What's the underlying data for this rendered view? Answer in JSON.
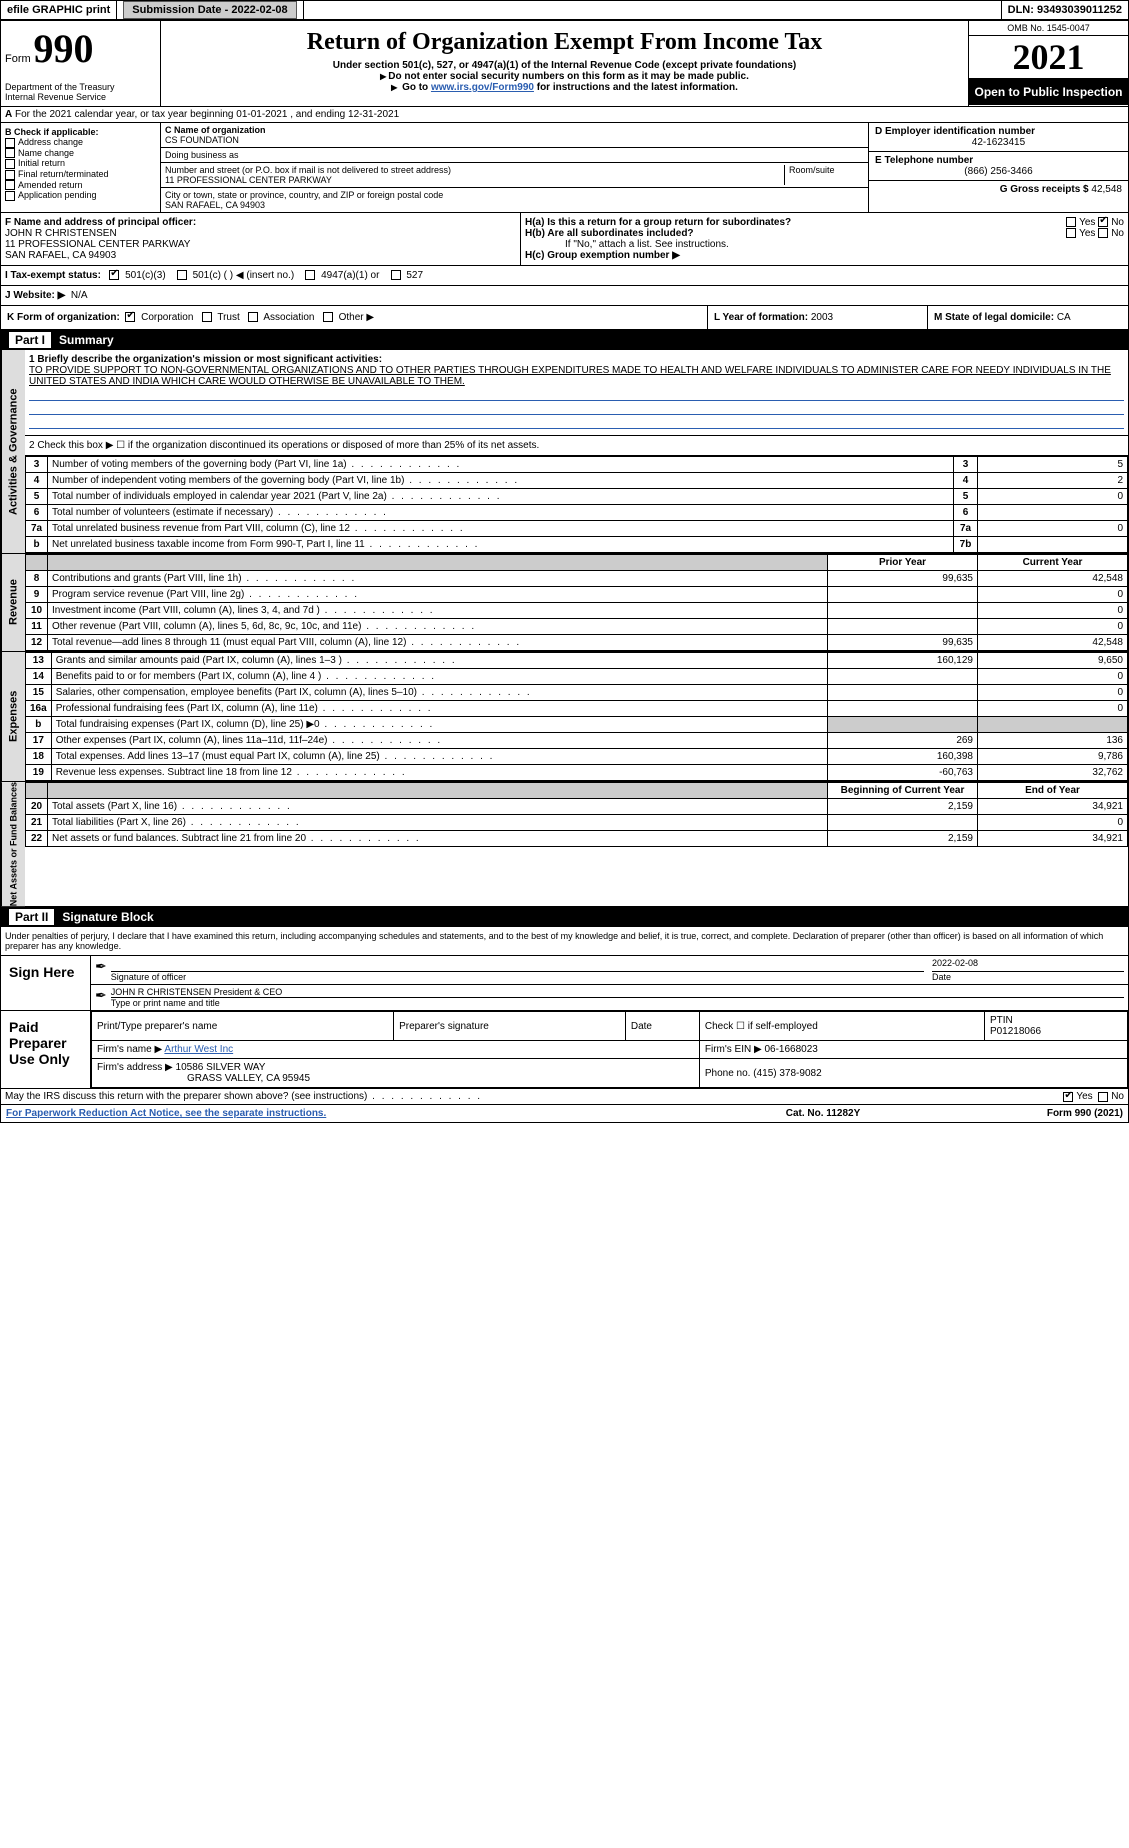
{
  "topbar": {
    "efile": "efile GRAPHIC print",
    "submission_label": "Submission Date - ",
    "submission_date": "2022-02-08",
    "dln_label": "DLN: ",
    "dln": "93493039011252"
  },
  "header": {
    "form_word": "Form",
    "form_num": "990",
    "title": "Return of Organization Exempt From Income Tax",
    "subtitle": "Under section 501(c), 527, or 4947(a)(1) of the Internal Revenue Code (except private foundations)",
    "note1": "Do not enter social security numbers on this form as it may be made public.",
    "note2_pre": "Go to ",
    "note2_link": "www.irs.gov/Form990",
    "note2_post": " for instructions and the latest information.",
    "dept": "Department of the Treasury\nInternal Revenue Service",
    "omb": "OMB No. 1545-0047",
    "year": "2021",
    "open": "Open to Public Inspection"
  },
  "lineA": "For the 2021 calendar year, or tax year beginning 01-01-2021    , and ending 12-31-2021",
  "secB": {
    "hdr": "B Check if applicable:",
    "items": [
      "Address change",
      "Name change",
      "Initial return",
      "Final return/terminated",
      "Amended return",
      "Application pending"
    ]
  },
  "secC": {
    "label": "C Name of organization",
    "name": "CS FOUNDATION",
    "dba_label": "Doing business as",
    "addr_label": "Number and street (or P.O. box if mail is not delivered to street address)",
    "room_label": "Room/suite",
    "addr": "11 PROFESSIONAL CENTER PARKWAY",
    "city_label": "City or town, state or province, country, and ZIP or foreign postal code",
    "city": "SAN RAFAEL, CA  94903"
  },
  "secD": {
    "label": "D Employer identification number",
    "value": "42-1623415"
  },
  "secE": {
    "label": "E Telephone number",
    "value": "(866) 256-3466"
  },
  "secG": {
    "label": "G Gross receipts $",
    "value": "42,548"
  },
  "secF": {
    "label": "F Name and address of principal officer:",
    "name": "JOHN R CHRISTENSEN",
    "addr1": "11 PROFESSIONAL CENTER PARKWAY",
    "addr2": "SAN RAFAEL, CA  94903"
  },
  "secH": {
    "a": "H(a)  Is this a return for a group return for subordinates?",
    "b": "H(b)  Are all subordinates included?",
    "b_note": "If \"No,\" attach a list. See instructions.",
    "c": "H(c)  Group exemption number ▶",
    "yes": "Yes",
    "no": "No"
  },
  "secI": {
    "label": "I   Tax-exempt status:",
    "opts": [
      "501(c)(3)",
      "501(c) (   )  ◀ (insert no.)",
      "4947(a)(1) or",
      "527"
    ]
  },
  "secJ": {
    "label": "J   Website: ▶",
    "value": "N/A"
  },
  "secK": {
    "label": "K Form of organization:",
    "opts": [
      "Corporation",
      "Trust",
      "Association",
      "Other ▶"
    ]
  },
  "secL": {
    "label": "L Year of formation:",
    "value": "2003"
  },
  "secM": {
    "label": "M State of legal domicile:",
    "value": "CA"
  },
  "part1": {
    "hdr_num": "Part I",
    "hdr_title": "Summary",
    "q1_label": "1   Briefly describe the organization's mission or most significant activities:",
    "q1_text": "TO PROVIDE SUPPORT TO NON-GOVERNMENTAL ORGANIZATIONS AND TO OTHER PARTIES THROUGH EXPENDITURES MADE TO HEALTH AND WELFARE INDIVIDUALS TO ADMINISTER CARE FOR NEEDY INDIVIDUALS IN THE UNITED STATES AND INDIA WHICH CARE WOULD OTHERWISE BE UNAVAILABLE TO THEM.",
    "q2_label": "2   Check this box ▶ ☐ if the organization discontinued its operations or disposed of more than 25% of its net assets.",
    "side1": "Activities & Governance",
    "rows_act": [
      {
        "n": "3",
        "label": "Number of voting members of the governing body (Part VI, line 1a)",
        "box": "3",
        "v": "5"
      },
      {
        "n": "4",
        "label": "Number of independent voting members of the governing body (Part VI, line 1b)",
        "box": "4",
        "v": "2"
      },
      {
        "n": "5",
        "label": "Total number of individuals employed in calendar year 2021 (Part V, line 2a)",
        "box": "5",
        "v": "0"
      },
      {
        "n": "6",
        "label": "Total number of volunteers (estimate if necessary)",
        "box": "6",
        "v": ""
      },
      {
        "n": "7a",
        "label": "Total unrelated business revenue from Part VIII, column (C), line 12",
        "box": "7a",
        "v": "0"
      },
      {
        "n": "b",
        "label": "Net unrelated business taxable income from Form 990-T, Part I, line 11",
        "box": "7b",
        "v": ""
      }
    ],
    "col_hdr_prior": "Prior Year",
    "col_hdr_curr": "Current Year",
    "side2": "Revenue",
    "rows_rev": [
      {
        "n": "8",
        "label": "Contributions and grants (Part VIII, line 1h)",
        "p": "99,635",
        "c": "42,548"
      },
      {
        "n": "9",
        "label": "Program service revenue (Part VIII, line 2g)",
        "p": "",
        "c": "0"
      },
      {
        "n": "10",
        "label": "Investment income (Part VIII, column (A), lines 3, 4, and 7d )",
        "p": "",
        "c": "0"
      },
      {
        "n": "11",
        "label": "Other revenue (Part VIII, column (A), lines 5, 6d, 8c, 9c, 10c, and 11e)",
        "p": "",
        "c": "0"
      },
      {
        "n": "12",
        "label": "Total revenue—add lines 8 through 11 (must equal Part VIII, column (A), line 12)",
        "p": "99,635",
        "c": "42,548"
      }
    ],
    "side3": "Expenses",
    "rows_exp": [
      {
        "n": "13",
        "label": "Grants and similar amounts paid (Part IX, column (A), lines 1–3 )",
        "p": "160,129",
        "c": "9,650"
      },
      {
        "n": "14",
        "label": "Benefits paid to or for members (Part IX, column (A), line 4 )",
        "p": "",
        "c": "0"
      },
      {
        "n": "15",
        "label": "Salaries, other compensation, employee benefits (Part IX, column (A), lines 5–10)",
        "p": "",
        "c": "0"
      },
      {
        "n": "16a",
        "label": "Professional fundraising fees (Part IX, column (A), line 11e)",
        "p": "",
        "c": "0"
      },
      {
        "n": "b",
        "label": "Total fundraising expenses (Part IX, column (D), line 25) ▶0",
        "p": "SHADE",
        "c": "SHADE"
      },
      {
        "n": "17",
        "label": "Other expenses (Part IX, column (A), lines 11a–11d, 11f–24e)",
        "p": "269",
        "c": "136"
      },
      {
        "n": "18",
        "label": "Total expenses. Add lines 13–17 (must equal Part IX, column (A), line 25)",
        "p": "160,398",
        "c": "9,786"
      },
      {
        "n": "19",
        "label": "Revenue less expenses. Subtract line 18 from line 12",
        "p": "-60,763",
        "c": "32,762"
      }
    ],
    "col_hdr_begin": "Beginning of Current Year",
    "col_hdr_end": "End of Year",
    "side4": "Net Assets or Fund Balances",
    "rows_net": [
      {
        "n": "20",
        "label": "Total assets (Part X, line 16)",
        "p": "2,159",
        "c": "34,921"
      },
      {
        "n": "21",
        "label": "Total liabilities (Part X, line 26)",
        "p": "",
        "c": "0"
      },
      {
        "n": "22",
        "label": "Net assets or fund balances. Subtract line 21 from line 20",
        "p": "2,159",
        "c": "34,921"
      }
    ]
  },
  "part2": {
    "hdr_num": "Part II",
    "hdr_title": "Signature Block",
    "penalty": "Under penalties of perjury, I declare that I have examined this return, including accompanying schedules and statements, and to the best of my knowledge and belief, it is true, correct, and complete. Declaration of preparer (other than officer) is based on all information of which preparer has any knowledge."
  },
  "sign": {
    "here": "Sign Here",
    "sig_label": "Signature of officer",
    "date_label": "Date",
    "date": "2022-02-08",
    "name": "JOHN R CHRISTENSEN  President & CEO",
    "name_label": "Type or print name and title"
  },
  "paid": {
    "title": "Paid Preparer Use Only",
    "h1": "Print/Type preparer's name",
    "h2": "Preparer's signature",
    "h3": "Date",
    "h4_pre": "Check ☐ if self-employed",
    "h5": "PTIN",
    "ptin": "P01218066",
    "firm_name_label": "Firm's name   ▶",
    "firm_name": "Arthur West Inc",
    "firm_ein_label": "Firm's EIN ▶",
    "firm_ein": "06-1668023",
    "firm_addr_label": "Firm's address ▶",
    "firm_addr1": "10586 SILVER WAY",
    "firm_addr2": "GRASS VALLEY, CA  95945",
    "phone_label": "Phone no.",
    "phone": "(415) 378-9082"
  },
  "bottom": {
    "q": "May the IRS discuss this return with the preparer shown above? (see instructions)",
    "yes": "Yes",
    "no": "No"
  },
  "footer": {
    "left": "For Paperwork Reduction Act Notice, see the separate instructions.",
    "mid": "Cat. No. 11282Y",
    "right": "Form 990 (2021)"
  }
}
